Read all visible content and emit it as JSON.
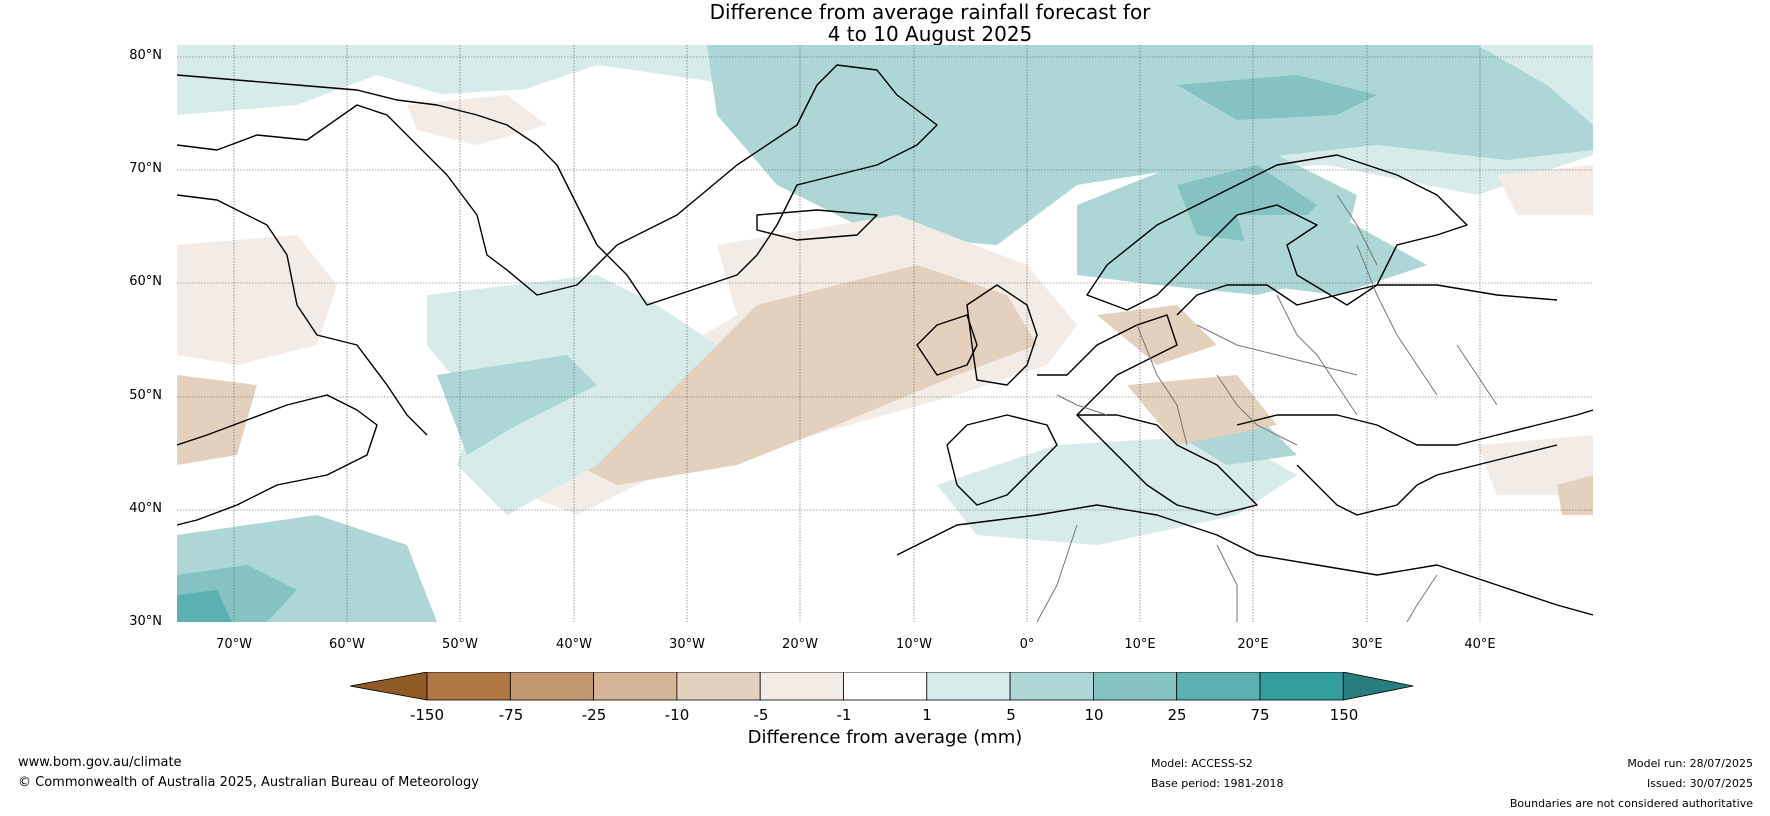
{
  "title": {
    "line1": "Difference from average rainfall forecast for",
    "line2": "4 to 10 August 2025"
  },
  "axes": {
    "lat_labels": [
      "80°N",
      "70°N",
      "60°N",
      "50°N",
      "40°N",
      "30°N"
    ],
    "lon_labels": [
      "70°W",
      "60°W",
      "50°W",
      "40°W",
      "30°W",
      "20°W",
      "10°W",
      "0°",
      "10°E",
      "20°E",
      "30°E",
      "40°E"
    ]
  },
  "colorbar": {
    "label": "Difference from average (mm)",
    "ticks": [
      "-150",
      "-75",
      "-25",
      "-10",
      "-5",
      "-1",
      "1",
      "5",
      "10",
      "25",
      "75",
      "150"
    ],
    "colors": [
      "#8f5a24",
      "#b07844",
      "#c29770",
      "#d4b597",
      "#e3d0bd",
      "#f3ece6",
      "#ffffff",
      "#d6ebea",
      "#acd7d6",
      "#84c3c2",
      "#5cb0b0",
      "#349d9e",
      "#287e7e"
    ]
  },
  "footer": {
    "website": "www.bom.gov.au/climate",
    "copyright": "© Commonwealth of Australia 2025, Australian Bureau of Meteorology",
    "model": "Model: ACCESS-S2",
    "base_period": "Base period: 1981-2018",
    "model_run": "Model run: 28/07/2025",
    "issued": "Issued: 30/07/2025",
    "disclaimer": "Boundaries are not considered authoritative"
  }
}
